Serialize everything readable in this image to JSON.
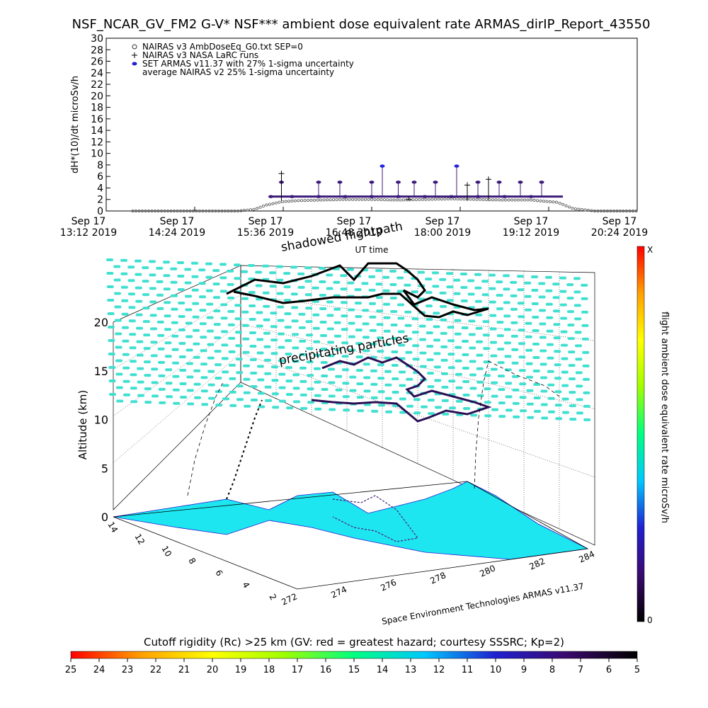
{
  "chart_data": [
    {
      "type": "scatter",
      "title": "NSF_NCAR_GV_FM2 G-V* NSF*** ambient dose equivalent rate ARMAS_dirIP_Report_43550",
      "xlabel": "UT time",
      "ylabel": "dH*(10)/dt microSv/h",
      "ylim": [
        0,
        30
      ],
      "y_ticks": [
        "0",
        "2",
        "4",
        "6",
        "8",
        "10",
        "12",
        "14",
        "16",
        "18",
        "20",
        "22",
        "24",
        "26",
        "28",
        "30"
      ],
      "x_ticks": [
        {
          "date": "Sep 17",
          "time": "13:12 2019"
        },
        {
          "date": "Sep 17",
          "time": "14:24 2019"
        },
        {
          "date": "Sep 17",
          "time": "15:36 2019"
        },
        {
          "date": "Sep 17",
          "time": "16:48 2019"
        },
        {
          "date": "Sep 17",
          "time": "18:00 2019"
        },
        {
          "date": "Sep 17",
          "time": "19:12 2019"
        },
        {
          "date": "Sep 17",
          "time": "20:24 2019"
        }
      ],
      "legend": [
        {
          "symbol": "diamond",
          "label": "NAIRAS v3 AmbDoseEq_G0.txt SEP=0"
        },
        {
          "symbol": "plus",
          "label": "NAIRAS v3 NASA LaRC runs"
        },
        {
          "symbol": "dot",
          "label": "SET ARMAS v11.37 with 27% 1-sigma uncertainty"
        },
        {
          "symbol": "none",
          "label": "average NAIRAS v2 25% 1-sigma uncertainty"
        }
      ],
      "legend_position": "top-left",
      "series": [
        {
          "name": "NAIRAS v3 AmbDoseEq_G0.txt SEP=0",
          "color": "#555555",
          "points": [
            [
              0.05,
              0
            ],
            [
              0.1,
              0
            ],
            [
              0.15,
              0
            ],
            [
              0.2,
              0
            ],
            [
              0.25,
              0
            ],
            [
              0.28,
              0.3
            ],
            [
              0.3,
              1
            ],
            [
              0.33,
              1.6
            ],
            [
              0.36,
              1.8
            ],
            [
              0.4,
              1.9
            ],
            [
              0.45,
              2
            ],
            [
              0.5,
              2
            ],
            [
              0.55,
              1.9
            ],
            [
              0.6,
              2
            ],
            [
              0.65,
              2.1
            ],
            [
              0.7,
              2
            ],
            [
              0.75,
              1.9
            ],
            [
              0.8,
              1.9
            ],
            [
              0.85,
              1.5
            ],
            [
              0.88,
              0.4
            ],
            [
              0.92,
              0
            ],
            [
              0.96,
              0
            ],
            [
              1.0,
              0
            ]
          ]
        },
        {
          "name": "NAIRAS v3 NASA LaRC runs",
          "color": "#000000",
          "points": [
            [
              0.33,
              6.5
            ],
            [
              0.57,
              2
            ],
            [
              0.68,
              4.5
            ],
            [
              0.72,
              5.5
            ]
          ]
        },
        {
          "name": "SET ARMAS v11.37 with 27% 1-sigma uncertainty",
          "color": "#3b1b7a",
          "points": [
            [
              0.31,
              2.5
            ],
            [
              0.35,
              2.5
            ],
            [
              0.4,
              2.5
            ],
            [
              0.45,
              2.5
            ],
            [
              0.5,
              2.5
            ],
            [
              0.55,
              2.5
            ],
            [
              0.6,
              2.5
            ],
            [
              0.65,
              2.5
            ],
            [
              0.7,
              2.5
            ],
            [
              0.75,
              2.5
            ],
            [
              0.8,
              2.5
            ],
            [
              0.33,
              5
            ],
            [
              0.4,
              5
            ],
            [
              0.44,
              5
            ],
            [
              0.5,
              5
            ],
            [
              0.52,
              7.8
            ],
            [
              0.55,
              5
            ],
            [
              0.58,
              5
            ],
            [
              0.62,
              5
            ],
            [
              0.66,
              7.8
            ],
            [
              0.7,
              5
            ],
            [
              0.74,
              5
            ],
            [
              0.78,
              5
            ],
            [
              0.82,
              5
            ]
          ]
        }
      ]
    },
    {
      "type": "scatter",
      "view": "3d flight track over cutoff rigidity map",
      "zlabel": "Altitude (km)",
      "z_ticks": [
        "0",
        "5",
        "10",
        "15",
        "20"
      ],
      "x_ticks": [
        "272",
        "274",
        "276",
        "278",
        "280",
        "282",
        "284"
      ],
      "y_ticks": [
        "2",
        "4",
        "6",
        "8",
        "10",
        "12",
        "14"
      ],
      "annotations": [
        "shadowed flightpath",
        "precipitating particles",
        "Space Environment Technologies ARMAS v11.37"
      ],
      "track_color": "#2b0f55",
      "plane_color": "#40e0d0",
      "land_color": "#1ee6f0"
    }
  ],
  "colorbar_right": {
    "label": "flight ambient dose equivalent rate microSv/h",
    "top": "X",
    "bottom": "0",
    "colors": [
      "#000000",
      "#3b0a6e",
      "#2020d0",
      "#00c8ff",
      "#00ff80",
      "#a0ff00",
      "#ffff00",
      "#ffa000",
      "#ff0000"
    ]
  },
  "colorbar_bottom": {
    "label": "Cutoff rigidity (Rc) >25 km (GV: red = greatest hazard; courtesy SSSRC; Kp=2)",
    "ticks": [
      "25",
      "24",
      "23",
      "22",
      "21",
      "20",
      "19",
      "18",
      "17",
      "16",
      "15",
      "14",
      "13",
      "12",
      "11",
      "10",
      "9",
      "8",
      "7",
      "6",
      "5"
    ],
    "colors": [
      "#000000",
      "#3b0a6e",
      "#2020d0",
      "#00c8ff",
      "#00ff80",
      "#a0ff00",
      "#ffff00",
      "#ffa000",
      "#ff0000"
    ]
  }
}
